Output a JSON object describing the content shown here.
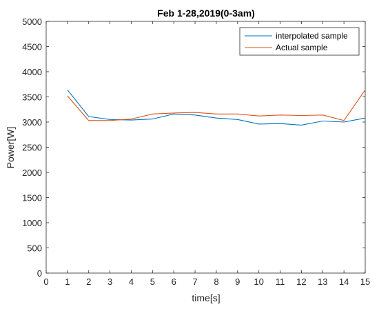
{
  "chart_data": {
    "type": "line",
    "title": "Feb 1-28,2019(0-3am)",
    "xlabel": "time[s]",
    "ylabel": "Power[W]",
    "xlim": [
      0,
      15
    ],
    "ylim": [
      0,
      5000
    ],
    "xticks": [
      0,
      1,
      2,
      3,
      4,
      5,
      6,
      7,
      8,
      9,
      10,
      11,
      12,
      13,
      14,
      15
    ],
    "yticks": [
      0,
      500,
      1000,
      1500,
      2000,
      2500,
      3000,
      3500,
      4000,
      4500,
      5000
    ],
    "grid": false,
    "legend_position": "top-right",
    "x": [
      1,
      2,
      3,
      4,
      5,
      6,
      7,
      8,
      9,
      10,
      11,
      12,
      13,
      14,
      15
    ],
    "series": [
      {
        "name": "interpolated sample",
        "color": "#0072BD",
        "values": [
          3640,
          3110,
          3050,
          3040,
          3060,
          3160,
          3140,
          3080,
          3050,
          2960,
          2970,
          2940,
          3020,
          3000,
          3080
        ]
      },
      {
        "name": "Actual sample",
        "color": "#D95319",
        "values": [
          3520,
          3030,
          3030,
          3060,
          3160,
          3180,
          3190,
          3160,
          3160,
          3120,
          3140,
          3130,
          3140,
          3030,
          3640
        ]
      }
    ]
  }
}
